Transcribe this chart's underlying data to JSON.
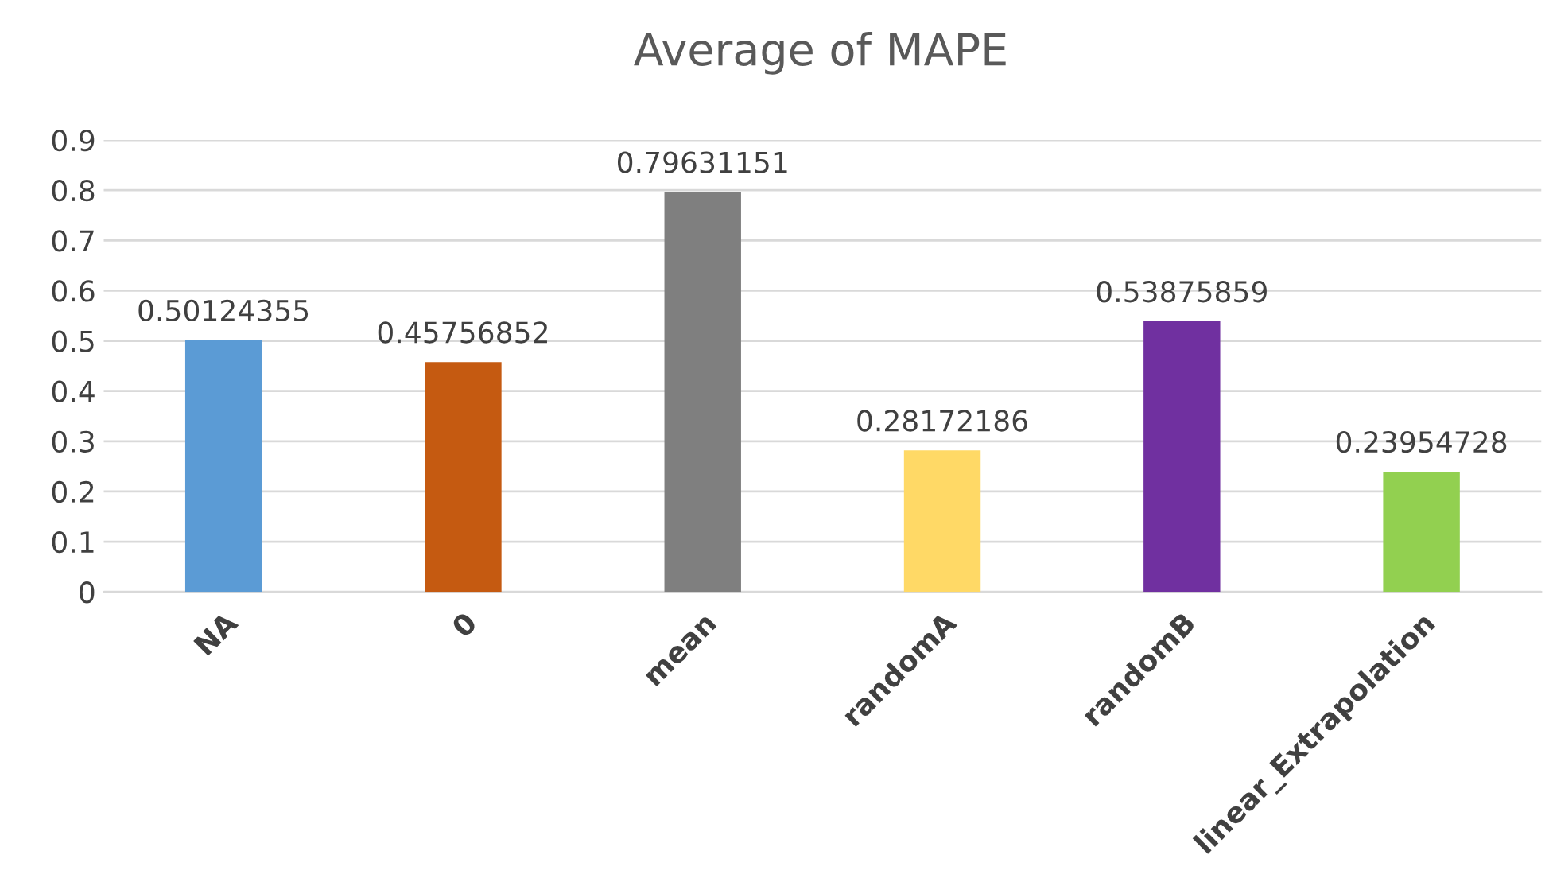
{
  "chart_data": {
    "type": "bar",
    "title": "Average of MAPE",
    "categories": [
      "NA",
      "0",
      "mean",
      "randomA",
      "randomB",
      "linear_Extrapolation"
    ],
    "values": [
      0.50124355,
      0.45756852,
      0.79631151,
      0.28172186,
      0.53875859,
      0.23954728
    ],
    "colors": [
      "#5b9bd5",
      "#c55a11",
      "#7f7f7f",
      "#ffd966",
      "#7030a0",
      "#92d050"
    ],
    "ylim": [
      0,
      0.9
    ],
    "yticks": [
      0,
      0.1,
      0.2,
      0.3,
      0.4,
      0.5,
      0.6,
      0.7,
      0.8,
      0.9
    ],
    "grid": "y",
    "data_labels": true,
    "legend": false
  }
}
